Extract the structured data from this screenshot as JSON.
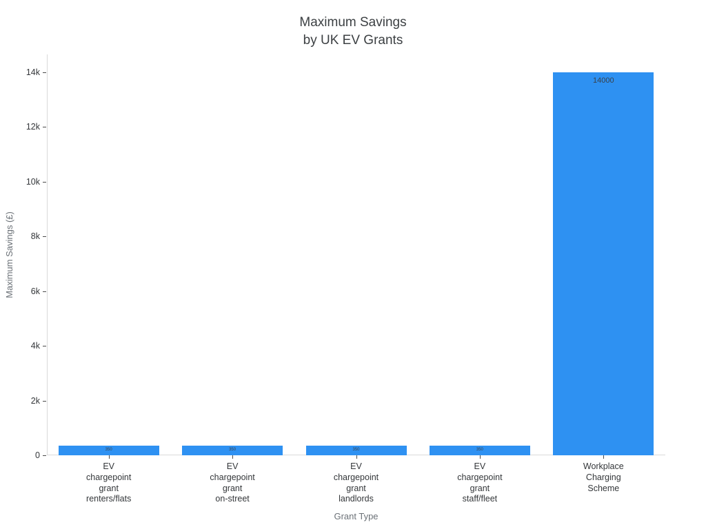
{
  "chart_data": {
    "type": "bar",
    "title": "Maximum Savings\nby UK EV Grants",
    "xlabel": "Grant Type",
    "ylabel": "Maximum Savings (£)",
    "categories": [
      "EV chargepoint grant renters/flats",
      "EV chargepoint grant on-street",
      "EV chargepoint grant landlords",
      "EV chargepoint grant staff/fleet",
      "Workplace Charging Scheme"
    ],
    "values": [
      350,
      350,
      350,
      350,
      14000
    ],
    "bar_labels": [
      "350",
      "350",
      "350",
      "350",
      "14000"
    ],
    "ylim": [
      0,
      14000
    ],
    "yticks": [
      0,
      2000,
      4000,
      6000,
      8000,
      10000,
      12000,
      14000
    ],
    "ytick_labels": [
      "0",
      "2k",
      "4k",
      "6k",
      "8k",
      "10k",
      "12k",
      "14k"
    ],
    "bar_color": "#2e91f2",
    "grid": false,
    "legend": "none"
  }
}
